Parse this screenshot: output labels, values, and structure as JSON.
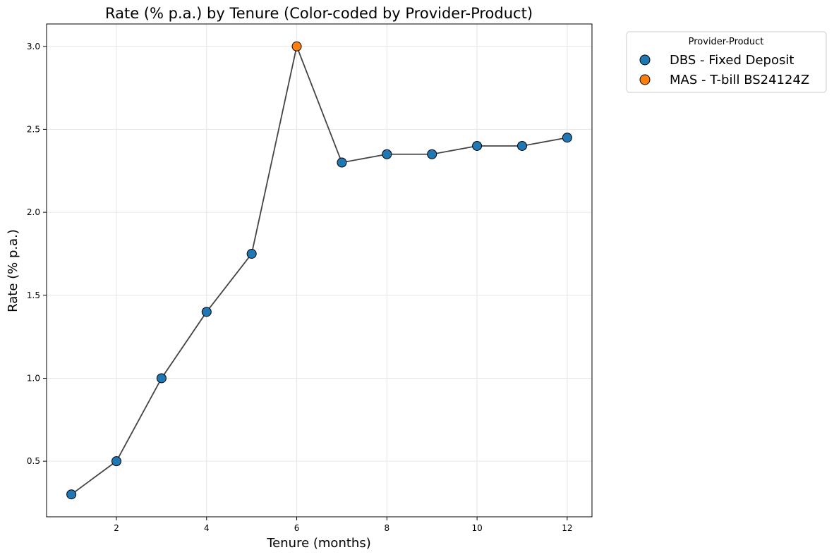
{
  "chart_data": {
    "type": "scatter",
    "title": "Rate (% p.a.) by Tenure (Color-coded by Provider-Product)",
    "xlabel": "Tenure (months)",
    "ylabel": "Rate (% p.a.)",
    "xlim": [
      0.45,
      12.55
    ],
    "ylim": [
      0.165,
      3.135
    ],
    "xticks": [
      2,
      4,
      6,
      8,
      10,
      12
    ],
    "xtick_labels": [
      "2",
      "4",
      "6",
      "8",
      "10",
      "12"
    ],
    "yticks": [
      0.5,
      1.0,
      1.5,
      2.0,
      2.5,
      3.0
    ],
    "ytick_labels": [
      "0.5",
      "1.0",
      "1.5",
      "2.0",
      "2.5",
      "3.0"
    ],
    "grid": true,
    "connecting_line_color": "#444444",
    "legend": {
      "title": "Provider-Product",
      "placement": "outside-top-right",
      "entries": [
        {
          "label": "DBS - Fixed Deposit",
          "color": "#1f77b4"
        },
        {
          "label": "MAS - T-bill BS24124Z",
          "color": "#ff7f0e"
        }
      ]
    },
    "points": [
      {
        "x": 1,
        "y": 0.3,
        "group": 0
      },
      {
        "x": 2,
        "y": 0.5,
        "group": 0
      },
      {
        "x": 3,
        "y": 1.0,
        "group": 0
      },
      {
        "x": 4,
        "y": 1.4,
        "group": 0
      },
      {
        "x": 5,
        "y": 1.75,
        "group": 0
      },
      {
        "x": 6,
        "y": 3.0,
        "group": 1
      },
      {
        "x": 7,
        "y": 2.3,
        "group": 0
      },
      {
        "x": 8,
        "y": 2.35,
        "group": 0
      },
      {
        "x": 9,
        "y": 2.35,
        "group": 0
      },
      {
        "x": 10,
        "y": 2.4,
        "group": 0
      },
      {
        "x": 11,
        "y": 2.4,
        "group": 0
      },
      {
        "x": 12,
        "y": 2.45,
        "group": 0
      }
    ]
  }
}
